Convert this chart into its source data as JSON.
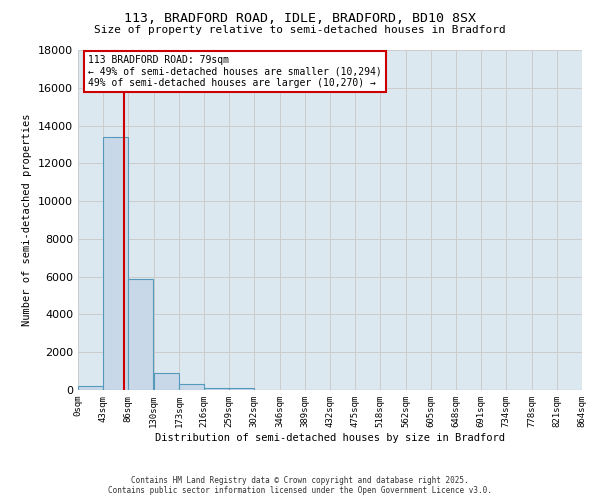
{
  "title_line1": "113, BRADFORD ROAD, IDLE, BRADFORD, BD10 8SX",
  "title_line2": "Size of property relative to semi-detached houses in Bradford",
  "xlabel": "Distribution of semi-detached houses by size in Bradford",
  "ylabel": "Number of semi-detached properties",
  "bin_edges": [
    0,
    43,
    86,
    130,
    173,
    216,
    259,
    302,
    346,
    389,
    432,
    475,
    518,
    562,
    605,
    648,
    691,
    734,
    778,
    821,
    864
  ],
  "bar_heights": [
    200,
    13400,
    5900,
    900,
    300,
    100,
    100,
    0,
    0,
    0,
    0,
    0,
    0,
    0,
    0,
    0,
    0,
    0,
    0,
    0
  ],
  "bar_color": "#c8d8e8",
  "bar_edge_color": "#5599bb",
  "ylim": [
    0,
    18000
  ],
  "yticks": [
    0,
    2000,
    4000,
    6000,
    8000,
    10000,
    12000,
    14000,
    16000,
    18000
  ],
  "property_size": 79,
  "red_line_color": "#cc0000",
  "annotation_text_line1": "113 BRADFORD ROAD: 79sqm",
  "annotation_text_line2": "← 49% of semi-detached houses are smaller (10,294)",
  "annotation_text_line3": "49% of semi-detached houses are larger (10,270) →",
  "annotation_box_color": "#cc0000",
  "annotation_bg": "#ffffff",
  "grid_color": "#cccccc",
  "background_color": "#dce8f0",
  "footer_line1": "Contains HM Land Registry data © Crown copyright and database right 2025.",
  "footer_line2": "Contains public sector information licensed under the Open Government Licence v3.0.",
  "tick_labels": [
    "0sqm",
    "43sqm",
    "86sqm",
    "130sqm",
    "173sqm",
    "216sqm",
    "259sqm",
    "302sqm",
    "346sqm",
    "389sqm",
    "432sqm",
    "475sqm",
    "518sqm",
    "562sqm",
    "605sqm",
    "648sqm",
    "691sqm",
    "734sqm",
    "778sqm",
    "821sqm",
    "864sqm"
  ]
}
